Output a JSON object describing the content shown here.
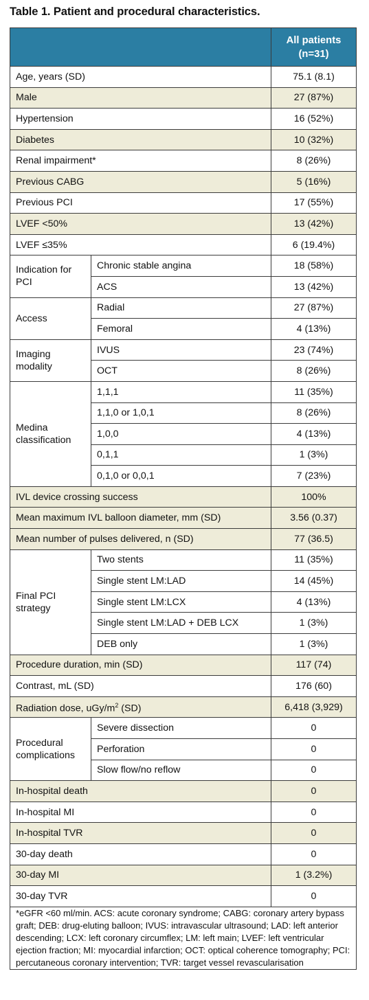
{
  "title": "Table 1. Patient and procedural characteristics.",
  "header": {
    "col_value_line1": "All patients",
    "col_value_line2": "(n=31)"
  },
  "rows": [
    {
      "label": "Age, years (SD)",
      "value": "75.1 (8.1)"
    },
    {
      "label": "Male",
      "value": "27 (87%)"
    },
    {
      "label": "Hypertension",
      "value": "16 (52%)"
    },
    {
      "label": "Diabetes",
      "value": "10 (32%)"
    },
    {
      "label": "Renal impairment*",
      "value": "8 (26%)"
    },
    {
      "label": "Previous CABG",
      "value": "5 (16%)"
    },
    {
      "label": "Previous PCI",
      "value": "17 (55%)"
    },
    {
      "label": "LVEF <50%",
      "value": "13 (42%)"
    },
    {
      "label": "LVEF ≤35%",
      "value": "6 (19.4%)"
    }
  ],
  "indication": {
    "group": "Indication for PCI",
    "items": [
      {
        "label": "Chronic stable angina",
        "value": "18 (58%)"
      },
      {
        "label": "ACS",
        "value": "13 (42%)"
      }
    ]
  },
  "access": {
    "group": "Access",
    "items": [
      {
        "label": "Radial",
        "value": "27 (87%)"
      },
      {
        "label": "Femoral",
        "value": "4 (13%)"
      }
    ]
  },
  "imaging": {
    "group": "Imaging modality",
    "items": [
      {
        "label": "IVUS",
        "value": "23 (74%)"
      },
      {
        "label": "OCT",
        "value": "8 (26%)"
      }
    ]
  },
  "medina": {
    "group": "Medina classification",
    "items": [
      {
        "label": "1,1,1",
        "value": "11 (35%)"
      },
      {
        "label": "1,1,0 or 1,0,1",
        "value": "8 (26%)"
      },
      {
        "label": "1,0,0",
        "value": "4 (13%)"
      },
      {
        "label": "0,1,1",
        "value": "1 (3%)"
      },
      {
        "label": "0,1,0 or 0,0,1",
        "value": "7 (23%)"
      }
    ]
  },
  "ivl_rows": [
    {
      "label": "IVL device crossing success",
      "value": "100%"
    },
    {
      "label": "Mean maximum IVL balloon diameter, mm (SD)",
      "value": "3.56 (0.37)"
    },
    {
      "label": "Mean number of pulses delivered, n (SD)",
      "value": "77 (36.5)"
    }
  ],
  "strategy": {
    "group": "Final PCI strategy",
    "items": [
      {
        "label": "Two stents",
        "value": "11 (35%)"
      },
      {
        "label": "Single stent LM:LAD",
        "value": "14 (45%)"
      },
      {
        "label": "Single stent LM:LCX",
        "value": "4 (13%)"
      },
      {
        "label": "Single stent LM:LAD + DEB LCX",
        "value": "1 (3%)"
      },
      {
        "label": "DEB only",
        "value": "1 (3%)"
      }
    ]
  },
  "procedure_rows": [
    {
      "label": "Procedure duration, min (SD)",
      "value": "117 (74)"
    },
    {
      "label": "Contrast, mL (SD)",
      "value": "176 (60)"
    },
    {
      "label_main": "Radiation dose, uGy/m",
      "label_sup": "2",
      "label_tail": " (SD)",
      "value": "6,418 (3,929)"
    }
  ],
  "complications": {
    "group": "Procedural complications",
    "items": [
      {
        "label": "Severe dissection",
        "value": "0"
      },
      {
        "label": "Perforation",
        "value": "0"
      },
      {
        "label": "Slow flow/no reflow",
        "value": "0"
      }
    ]
  },
  "outcome_rows": [
    {
      "label": "In-hospital death",
      "value": "0"
    },
    {
      "label": "In-hospital MI",
      "value": "0"
    },
    {
      "label": "In-hospital TVR",
      "value": "0"
    },
    {
      "label": "30-day death",
      "value": "0"
    },
    {
      "label": "30-day MI",
      "value": "1 (3.2%)"
    },
    {
      "label": "30-day TVR",
      "value": "0"
    }
  ],
  "footnote": "*eGFR <60 ml/min. ACS: acute coronary syndrome; CABG: coronary artery bypass graft; DEB: drug-eluting balloon; IVUS: intravascular ultrasound; LAD: left anterior descending; LCX: left coronary circumflex; LM: left main; LVEF: left ventricular ejection fraction; MI: myocardial infarction; OCT: optical coherence tomography; PCI: percutaneous coronary intervention; TVR: target vessel revascularisation",
  "colors": {
    "header_bg": "#2b7ea3",
    "shade_bg": "#eeecd9",
    "border": "#3a3a3a"
  }
}
